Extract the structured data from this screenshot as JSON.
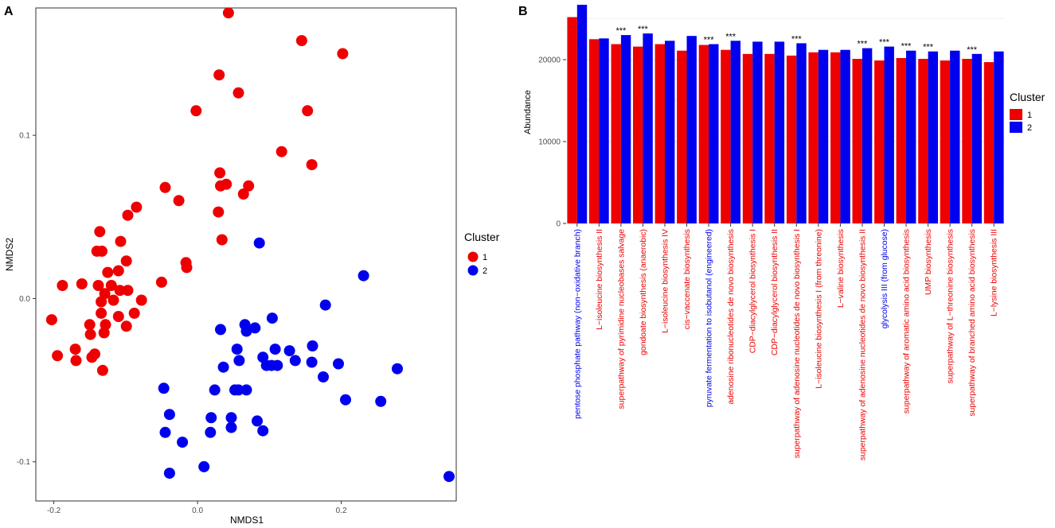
{
  "colors": {
    "cluster1": "#EE0000",
    "cluster2": "#0000EE",
    "panel_bg": "#FFFFFF",
    "grid": "#EBEBEB",
    "axis": "#333333"
  },
  "chart_data": [
    {
      "panel": "A",
      "type": "scatter",
      "xlabel": "NMDS1",
      "ylabel": "NMDS2",
      "xlim": [
        -0.225,
        0.36
      ],
      "ylim": [
        -0.124,
        0.178
      ],
      "x_ticks": [
        -0.2,
        0.0,
        0.2
      ],
      "x_tick_labels": [
        "-0.2",
        "0.0",
        "0.2"
      ],
      "y_ticks": [
        -0.1,
        0.0,
        0.1
      ],
      "y_tick_labels": [
        "-0.1",
        "0.0",
        "0.1"
      ],
      "grid": false,
      "legend": {
        "title": "Cluster",
        "placement": "right",
        "entries": [
          {
            "label": "1",
            "series": 0
          },
          {
            "label": "2",
            "series": 1
          }
        ]
      },
      "series": [
        {
          "name": "1",
          "points": [
            [
              0.043,
              0.175
            ],
            [
              0.145,
              0.158
            ],
            [
              0.202,
              0.15
            ],
            [
              0.03,
              0.137
            ],
            [
              0.057,
              0.126
            ],
            [
              -0.002,
              0.115
            ],
            [
              0.153,
              0.115
            ],
            [
              0.117,
              0.09
            ],
            [
              0.159,
              0.082
            ],
            [
              0.031,
              0.077
            ],
            [
              -0.085,
              0.056
            ],
            [
              -0.097,
              0.051
            ],
            [
              -0.045,
              0.068
            ],
            [
              -0.026,
              0.06
            ],
            [
              0.032,
              0.069
            ],
            [
              0.04,
              0.07
            ],
            [
              0.071,
              0.069
            ],
            [
              0.064,
              0.064
            ],
            [
              0.029,
              0.053
            ],
            [
              0.034,
              0.036
            ],
            [
              -0.136,
              0.041
            ],
            [
              -0.14,
              0.029
            ],
            [
              -0.133,
              0.029
            ],
            [
              -0.107,
              0.035
            ],
            [
              -0.099,
              0.023
            ],
            [
              -0.016,
              0.022
            ],
            [
              -0.015,
              0.019
            ],
            [
              -0.125,
              0.016
            ],
            [
              -0.11,
              0.017
            ],
            [
              -0.188,
              0.008
            ],
            [
              -0.161,
              0.009
            ],
            [
              -0.138,
              0.008
            ],
            [
              -0.12,
              0.008
            ],
            [
              -0.05,
              0.01
            ],
            [
              -0.129,
              0.003
            ],
            [
              -0.108,
              0.005
            ],
            [
              -0.097,
              0.005
            ],
            [
              -0.134,
              -0.002
            ],
            [
              -0.117,
              -0.001
            ],
            [
              -0.078,
              -0.001
            ],
            [
              -0.088,
              -0.009
            ],
            [
              -0.134,
              -0.009
            ],
            [
              -0.11,
              -0.011
            ],
            [
              -0.099,
              -0.017
            ],
            [
              -0.128,
              -0.016
            ],
            [
              -0.15,
              -0.016
            ],
            [
              -0.149,
              -0.022
            ],
            [
              -0.13,
              -0.021
            ],
            [
              -0.143,
              -0.034
            ],
            [
              -0.147,
              -0.036
            ],
            [
              -0.203,
              -0.013
            ],
            [
              -0.17,
              -0.031
            ],
            [
              -0.195,
              -0.035
            ],
            [
              -0.169,
              -0.038
            ],
            [
              -0.132,
              -0.044
            ]
          ]
        },
        {
          "name": "2",
          "points": [
            [
              0.086,
              0.034
            ],
            [
              0.231,
              0.014
            ],
            [
              0.178,
              -0.004
            ],
            [
              0.104,
              -0.012
            ],
            [
              0.08,
              -0.018
            ],
            [
              0.066,
              -0.016
            ],
            [
              0.068,
              -0.02
            ],
            [
              0.032,
              -0.019
            ],
            [
              0.055,
              -0.031
            ],
            [
              0.108,
              -0.031
            ],
            [
              0.128,
              -0.032
            ],
            [
              0.16,
              -0.029
            ],
            [
              0.091,
              -0.036
            ],
            [
              0.058,
              -0.038
            ],
            [
              0.111,
              -0.041
            ],
            [
              0.136,
              -0.038
            ],
            [
              0.196,
              -0.04
            ],
            [
              0.036,
              -0.042
            ],
            [
              0.096,
              -0.041
            ],
            [
              0.103,
              -0.041
            ],
            [
              0.159,
              -0.039
            ],
            [
              0.175,
              -0.048
            ],
            [
              0.278,
              -0.043
            ],
            [
              0.052,
              -0.056
            ],
            [
              0.057,
              -0.056
            ],
            [
              0.068,
              -0.056
            ],
            [
              0.024,
              -0.056
            ],
            [
              -0.047,
              -0.055
            ],
            [
              0.206,
              -0.062
            ],
            [
              0.255,
              -0.063
            ],
            [
              -0.039,
              -0.071
            ],
            [
              0.019,
              -0.073
            ],
            [
              0.047,
              -0.073
            ],
            [
              0.083,
              -0.075
            ],
            [
              -0.045,
              -0.082
            ],
            [
              0.018,
              -0.082
            ],
            [
              0.091,
              -0.081
            ],
            [
              -0.021,
              -0.088
            ],
            [
              0.047,
              -0.079
            ],
            [
              -0.039,
              -0.107
            ],
            [
              0.009,
              -0.103
            ],
            [
              0.35,
              -0.109
            ]
          ]
        }
      ]
    },
    {
      "panel": "B",
      "type": "bar",
      "ylabel": "Abundance",
      "xlabel": "",
      "ylim": [
        0,
        26800
      ],
      "y_ticks": [
        0,
        10000,
        20000
      ],
      "y_tick_labels": [
        "0",
        "10000",
        "20000"
      ],
      "grid": true,
      "legend": {
        "title": "Cluster",
        "placement": "right",
        "entries": [
          {
            "label": "1",
            "series": 0
          },
          {
            "label": "2",
            "series": 1
          }
        ]
      },
      "categories": [
        "pentose phosphate pathway (non−oxidative branch)",
        "L−isoleucine biosynthesis II",
        "superpathway of pyrimidine nucleobases salvage",
        "gondoate biosynthesis (anaerobic)",
        "L−isoleucine biosynthesis IV",
        "cis−vaccenate biosynthesis",
        "pyruvate fermentation to isobutanol (engineered)",
        "adenosine ribonucleotides de novo biosynthesis",
        "CDP−diacylglycerol biosynthesis I",
        "CDP−diacylglycerol biosynthesis II",
        "superpathway of adenosine nucleotides de novo biosynthesis I",
        "L−isoleucine biosynthesis I (from threonine)",
        "L−valine biosynthesis",
        "superpathway of adenosine nucleotides de novo biosynthesis II",
        "glycolysis III (from glucose)",
        "superpathway of aromatic amino acid biosynthesis",
        "UMP biosynthesis",
        "superpathway of L−threonine biosynthesis",
        "superpathway of branched amino acid biosynthesis",
        "L−lysine biosynthesis III"
      ],
      "category_label_color": [
        "blue",
        "red",
        "red",
        "red",
        "red",
        "red",
        "blue",
        "red",
        "red",
        "red",
        "red",
        "red",
        "red",
        "red",
        "blue",
        "red",
        "red",
        "red",
        "red",
        "red"
      ],
      "significance": [
        "",
        "",
        "***",
        "***",
        "",
        "",
        "***",
        "***",
        "",
        "",
        "***",
        "",
        "",
        "***",
        "***",
        "***",
        "***",
        "",
        "***",
        ""
      ],
      "series": [
        {
          "name": "1",
          "values": [
            25200,
            22500,
            21900,
            21600,
            21900,
            21100,
            21800,
            21200,
            20700,
            20700,
            20500,
            20900,
            20900,
            20100,
            19900,
            20200,
            20100,
            19900,
            20100,
            19700
          ]
        },
        {
          "name": "2",
          "values": [
            26700,
            22600,
            23000,
            23200,
            22300,
            22900,
            21900,
            22300,
            22200,
            22200,
            22000,
            21200,
            21200,
            21400,
            21600,
            21100,
            21000,
            21100,
            20700,
            21000
          ]
        }
      ]
    }
  ],
  "panels": {
    "A": {
      "tag": "A"
    },
    "B": {
      "tag": "B"
    }
  }
}
